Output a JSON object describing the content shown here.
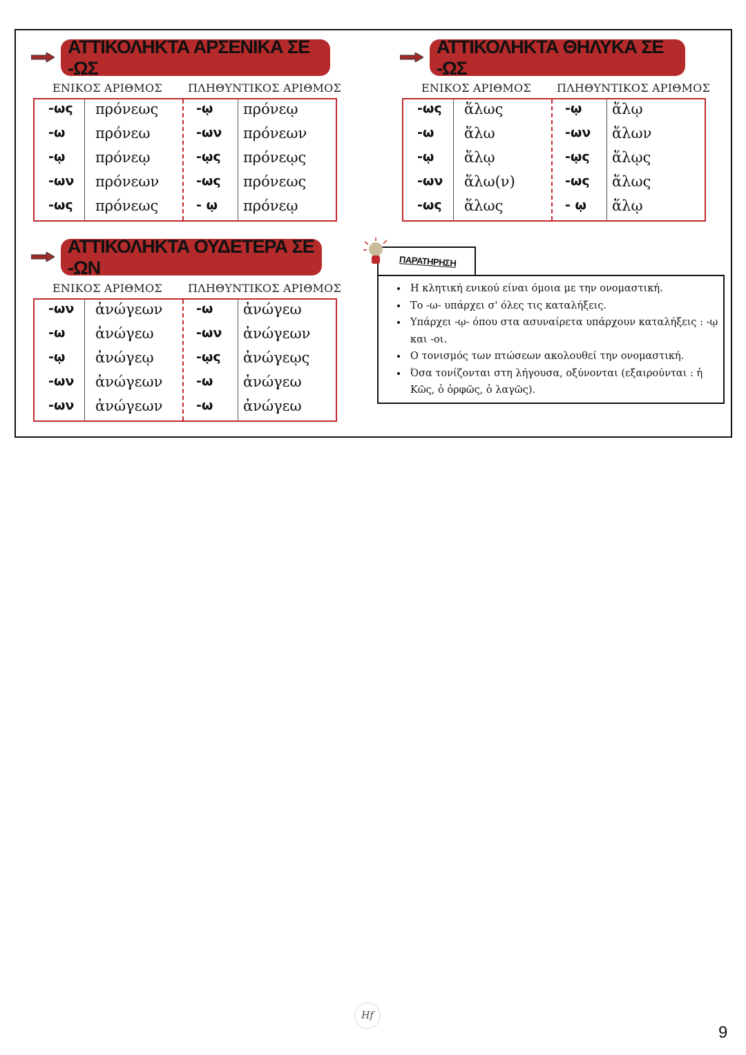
{
  "sections": [
    {
      "title": "ΑΤΤΙΚΟΛΗΚΤΑ ΑΡΣΕΝΙΚΑ  ΣΕ -ΩΣ",
      "singular_label": "ΕΝΙΚΟΣ ΑΡΙΘΜΟΣ",
      "plural_label": "ΠΛΗΘΥΝΤΙΚΟΣ ΑΡΙΘΜΟΣ",
      "rows": [
        [
          "-ως",
          "πρόνεως",
          "-ῳ",
          "πρόνεῳ"
        ],
        [
          "-ω",
          "πρόνεω",
          "-ων",
          "πρόνεων"
        ],
        [
          "-ῳ",
          "πρόνεῳ",
          "-ῳς",
          "πρόνεῳς"
        ],
        [
          "-ων",
          "πρόνεων",
          "-ως",
          "πρόνεως"
        ],
        [
          "-ως",
          "πρόνεως",
          "- ῳ",
          "πρόνεῳ"
        ]
      ]
    },
    {
      "title": "ΑΤΤΙΚΟΛΗΚΤΑ  ΘΗΛΥΚΑ ΣΕ -ΩΣ",
      "singular_label": "ΕΝΙΚΟΣ ΑΡΙΘΜΟΣ",
      "plural_label": "ΠΛΗΘΥΝΤΙΚΟΣ ΑΡΙΘΜΟΣ",
      "rows": [
        [
          "-ως",
          "ἅλως",
          "-ῳ",
          "ἅλῳ"
        ],
        [
          "-ω",
          "ἅλω",
          "-ων",
          "ἅλων"
        ],
        [
          "-ῳ",
          "ἅλῳ",
          "-ῳς",
          "ἅλῳς"
        ],
        [
          "-ων",
          "ἅλω(ν)",
          "-ως",
          "ἅλως"
        ],
        [
          "-ως",
          "ἅλως",
          "- ῳ",
          "ἅλῳ"
        ]
      ]
    },
    {
      "title": "ΑΤΤΙΚΟΛΗΚΤΑ ΟΥΔΕΤΕΡΑ ΣΕ -ΩΝ",
      "singular_label": "ΕΝΙΚΟΣ ΑΡΙΘΜΟΣ",
      "plural_label": "ΠΛΗΘΥΝΤΙΚΟΣ ΑΡΙΘΜΟΣ",
      "rows": [
        [
          "-ων",
          "ἀνώγεων",
          "-ω",
          "ἀνώγεω"
        ],
        [
          "-ω",
          "ἀνώγεω",
          "-ων",
          "ἀνώγεων"
        ],
        [
          "-ῳ",
          "ἀνώγεῳ",
          "-ῳς",
          "ἀνώγεῳς"
        ],
        [
          "-ων",
          "ἀνώγεων",
          "-ω",
          "ἀνώγεω"
        ],
        [
          "-ων",
          "ἀνώγεων",
          "-ω",
          "ἀνώγεω"
        ]
      ]
    }
  ],
  "note": {
    "title": "ΠΑΡΑΤΗΡΗΣΗ",
    "icon": "lightbulb-icon",
    "items": [
      "Η κλητική ενικού είναι όμοια με την ονομαστική.",
      "Το -ω- υπάρχει σ' όλες τις καταλήξεις.",
      "Υπάρχει -ῳ- όπου στα ασυναίρετα υπάρχουν καταλήξεις : -ῳ και -οι.",
      "Ο τονισμός των πτώσεων ακολουθεί την ονομαστική.",
      "Όσα τονίζονται στη λήγουσα, οξύνονται (εξαιρούνται : ἡ Κῶς, ὁ ὀρφῶς, ὁ λαγῶς)."
    ]
  },
  "logo": "Hf",
  "page_number": "9",
  "colors": {
    "accent": "#b52a2a",
    "table_border": "#c0282d"
  }
}
